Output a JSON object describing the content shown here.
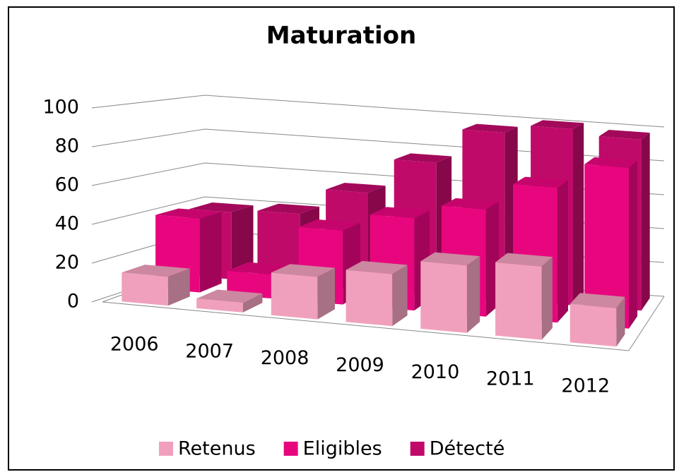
{
  "chart_data": {
    "type": "bar3d",
    "title": "Maturation",
    "categories": [
      "2006",
      "2007",
      "2008",
      "2009",
      "2010",
      "2011",
      "2012"
    ],
    "series": [
      {
        "name": "Retenus",
        "color": "#f0a0bc",
        "values": [
          15,
          5,
          22,
          27,
          35,
          38,
          20
        ]
      },
      {
        "name": "Eligibles",
        "color": "#e8067f",
        "values": [
          40,
          13,
          40,
          50,
          58,
          73,
          87
        ]
      },
      {
        "name": "Détecté",
        "color": "#c00a6a",
        "values": [
          38,
          40,
          55,
          75,
          95,
          100,
          97
        ]
      }
    ],
    "ylim": [
      0,
      100
    ],
    "yticks": [
      0,
      20,
      40,
      60,
      80,
      100
    ],
    "grid": true
  }
}
